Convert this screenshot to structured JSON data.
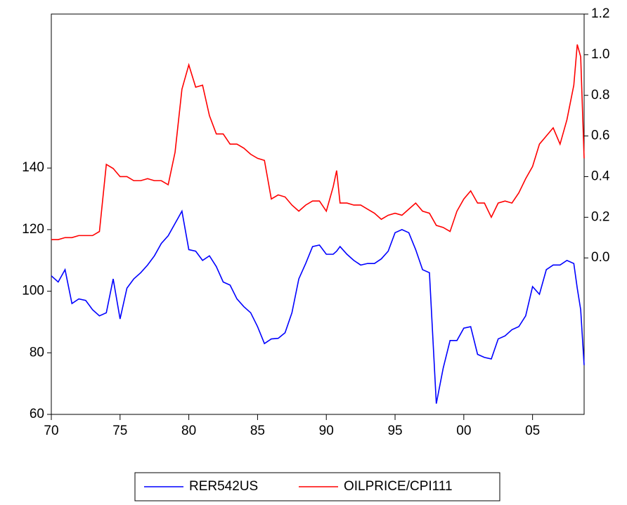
{
  "chart_data": {
    "type": "line",
    "x": [
      1970,
      1970.5,
      1971,
      1971.5,
      1972,
      1972.5,
      1973,
      1973.5,
      1974,
      1974.5,
      1975,
      1975.5,
      1976,
      1976.5,
      1977,
      1977.5,
      1978,
      1978.5,
      1979,
      1979.5,
      1980,
      1980.5,
      1981,
      1981.5,
      1982,
      1982.5,
      1983,
      1983.5,
      1984,
      1984.5,
      1985,
      1985.5,
      1986,
      1986.5,
      1987,
      1987.5,
      1988,
      1988.5,
      1989,
      1989.5,
      1990,
      1990.5,
      1990.75,
      1991,
      1991.5,
      1992,
      1992.5,
      1993,
      1993.5,
      1994,
      1994.5,
      1995,
      1995.5,
      1996,
      1996.5,
      1997,
      1997.5,
      1998,
      1998.5,
      1999,
      1999.5,
      2000,
      2000.5,
      2001,
      2001.5,
      2002,
      2002.5,
      2003,
      2003.5,
      2004,
      2004.5,
      2005,
      2005.5,
      2006,
      2006.5,
      2007,
      2007.5,
      2008,
      2008.25,
      2008.5,
      2008.75
    ],
    "series": [
      {
        "name": "RER542US",
        "color": "#0000ff",
        "values": [
          105,
          103,
          107,
          96,
          97.5,
          97,
          94,
          92,
          93,
          104,
          91,
          101,
          104,
          106,
          108.5,
          111.5,
          115.5,
          118,
          122,
          126,
          113.5,
          113,
          110,
          111.5,
          108,
          103,
          102,
          97.5,
          95,
          93,
          88.5,
          83,
          84.5,
          84.7,
          86.5,
          93,
          104,
          109,
          114.5,
          115,
          112,
          112,
          113,
          114.5,
          112,
          110,
          108.5,
          109,
          109,
          110.5,
          113,
          119,
          120,
          119,
          113.5,
          107,
          106,
          63.5,
          75,
          84,
          84,
          88,
          88.5,
          79.5,
          78.5,
          78,
          84.5,
          85.5,
          87.5,
          88.5,
          92,
          101.5,
          99,
          107,
          108.5,
          108.5,
          110,
          109,
          101,
          94,
          76
        ]
      },
      {
        "name": "OILPRICE/CPI111",
        "color": "#ff0000",
        "axis": "y2",
        "values": [
          0.09,
          0.09,
          0.1,
          0.1,
          0.11,
          0.11,
          0.11,
          0.13,
          0.46,
          0.44,
          0.4,
          0.4,
          0.38,
          0.38,
          0.39,
          0.38,
          0.38,
          0.36,
          0.52,
          0.83,
          0.95,
          0.84,
          0.85,
          0.7,
          0.61,
          0.61,
          0.56,
          0.56,
          0.54,
          0.51,
          0.49,
          0.48,
          0.29,
          0.31,
          0.3,
          0.26,
          0.23,
          0.26,
          0.28,
          0.28,
          0.23,
          0.35,
          0.43,
          0.27,
          0.27,
          0.26,
          0.26,
          0.24,
          0.22,
          0.19,
          0.21,
          0.22,
          0.21,
          0.24,
          0.27,
          0.23,
          0.22,
          0.16,
          0.15,
          0.13,
          0.23,
          0.29,
          0.33,
          0.27,
          0.27,
          0.2,
          0.27,
          0.28,
          0.27,
          0.32,
          0.39,
          0.45,
          0.56,
          0.6,
          0.64,
          0.56,
          0.68,
          0.85,
          1.05,
          0.99,
          0.49
        ]
      }
    ],
    "xlim": [
      1970,
      2008.75
    ],
    "xticks": [
      {
        "value": 1970,
        "label": "70"
      },
      {
        "value": 1975,
        "label": "75"
      },
      {
        "value": 1980,
        "label": "80"
      },
      {
        "value": 1985,
        "label": "85"
      },
      {
        "value": 1990,
        "label": "90"
      },
      {
        "value": 1995,
        "label": "95"
      },
      {
        "value": 2000,
        "label": "00"
      },
      {
        "value": 2005,
        "label": "05"
      }
    ],
    "ylim": [
      60,
      190
    ],
    "yticks": [
      60,
      80,
      100,
      120,
      140
    ],
    "y2lim": [
      -0.77,
      1.2
    ],
    "y2ticks": [
      {
        "value": 0,
        "label": "0.0"
      },
      0.2,
      0.4,
      0.6,
      0.8,
      {
        "value": 1,
        "label": "1.0"
      },
      1.2
    ],
    "legend": "bottom"
  }
}
